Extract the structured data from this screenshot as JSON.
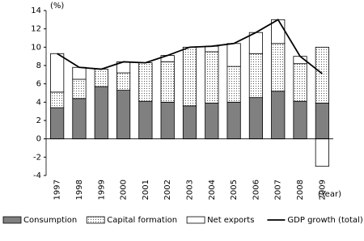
{
  "chart_data": {
    "type": "bar",
    "stacked": true,
    "y_unit_label": "(%)",
    "x_unit_label": "(Year)",
    "categories": [
      "1997",
      "1998",
      "1999",
      "2000",
      "2001",
      "2002",
      "2003",
      "2004",
      "2005",
      "2006",
      "2007",
      "2008",
      "2009"
    ],
    "series": [
      {
        "name": "Consumption",
        "color": "#808080",
        "values": [
          3.4,
          4.4,
          5.7,
          5.3,
          4.1,
          4.0,
          3.6,
          3.9,
          4.0,
          4.5,
          5.2,
          4.1,
          3.9
        ]
      },
      {
        "name": "Capital formation",
        "color": "#ffffff",
        "pattern": "dots",
        "values": [
          1.7,
          2.1,
          1.9,
          1.9,
          4.2,
          4.4,
          6.4,
          5.6,
          3.9,
          4.8,
          5.2,
          4.1,
          6.1
        ]
      },
      {
        "name": "Net exports",
        "color": "#ffffff",
        "values": [
          4.2,
          1.3,
          0.0,
          1.2,
          0.0,
          0.7,
          0.0,
          0.6,
          2.5,
          2.3,
          2.6,
          0.8,
          -3.0
        ]
      }
    ],
    "line_series": {
      "name": "GDP growth (total)",
      "color": "#000000",
      "values": [
        9.3,
        7.8,
        7.6,
        8.4,
        8.3,
        9.1,
        10.0,
        10.1,
        10.4,
        11.6,
        13.0,
        9.0,
        7.1
      ]
    },
    "ylim": [
      -4,
      14
    ],
    "yticks": [
      -4,
      -2,
      0,
      2,
      4,
      6,
      8,
      10,
      12,
      14
    ],
    "grid": false
  }
}
